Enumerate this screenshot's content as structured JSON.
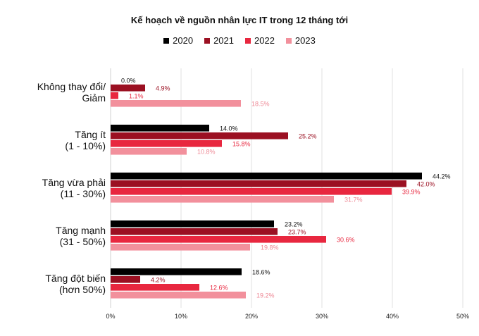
{
  "chart_data": {
    "type": "bar",
    "orientation": "horizontal",
    "title": "Kế hoạch về nguồn nhân lực IT trong 12 tháng tới",
    "xlabel": "",
    "ylabel": "",
    "xlim": [
      0,
      50
    ],
    "xticks": [
      "0%",
      "10%",
      "20%",
      "30%",
      "40%",
      "50%"
    ],
    "grid": true,
    "legend_position": "top",
    "categories": [
      [
        "Không thay đổi/",
        "Giảm"
      ],
      [
        "Tăng ít",
        "(1 - 10%)"
      ],
      [
        "Tăng vừa phải",
        "(11 - 30%)"
      ],
      [
        "Tăng mạnh",
        "(31 - 50%)"
      ],
      [
        "Tăng đột biến",
        "(hơn 50%)"
      ]
    ],
    "series": [
      {
        "name": "2020",
        "color": "#000000",
        "label_color": "#111111",
        "values": [
          0.0,
          14.0,
          44.2,
          23.2,
          18.6
        ],
        "labels": [
          "0.0%",
          "14.0%",
          "44.2%",
          "23.2%",
          "18.6%"
        ]
      },
      {
        "name": "2021",
        "color": "#9b1022",
        "label_color": "#9b1022",
        "values": [
          4.9,
          25.2,
          42.0,
          23.7,
          4.2
        ],
        "labels": [
          "4.9%",
          "25.2%",
          "42.0%",
          "23.7%",
          "4.2%"
        ]
      },
      {
        "name": "2022",
        "color": "#e8273f",
        "label_color": "#e8273f",
        "values": [
          1.1,
          15.8,
          39.9,
          30.6,
          12.6
        ],
        "labels": [
          "1.1%",
          "15.8%",
          "39.9%",
          "30.6%",
          "12.6%"
        ]
      },
      {
        "name": "2023",
        "color": "#f2909c",
        "label_color": "#ee8794",
        "values": [
          18.5,
          10.8,
          31.7,
          19.8,
          19.2
        ],
        "labels": [
          "18.5%",
          "10.8%",
          "31.7%",
          "19.8%",
          "19.2%"
        ]
      }
    ]
  }
}
